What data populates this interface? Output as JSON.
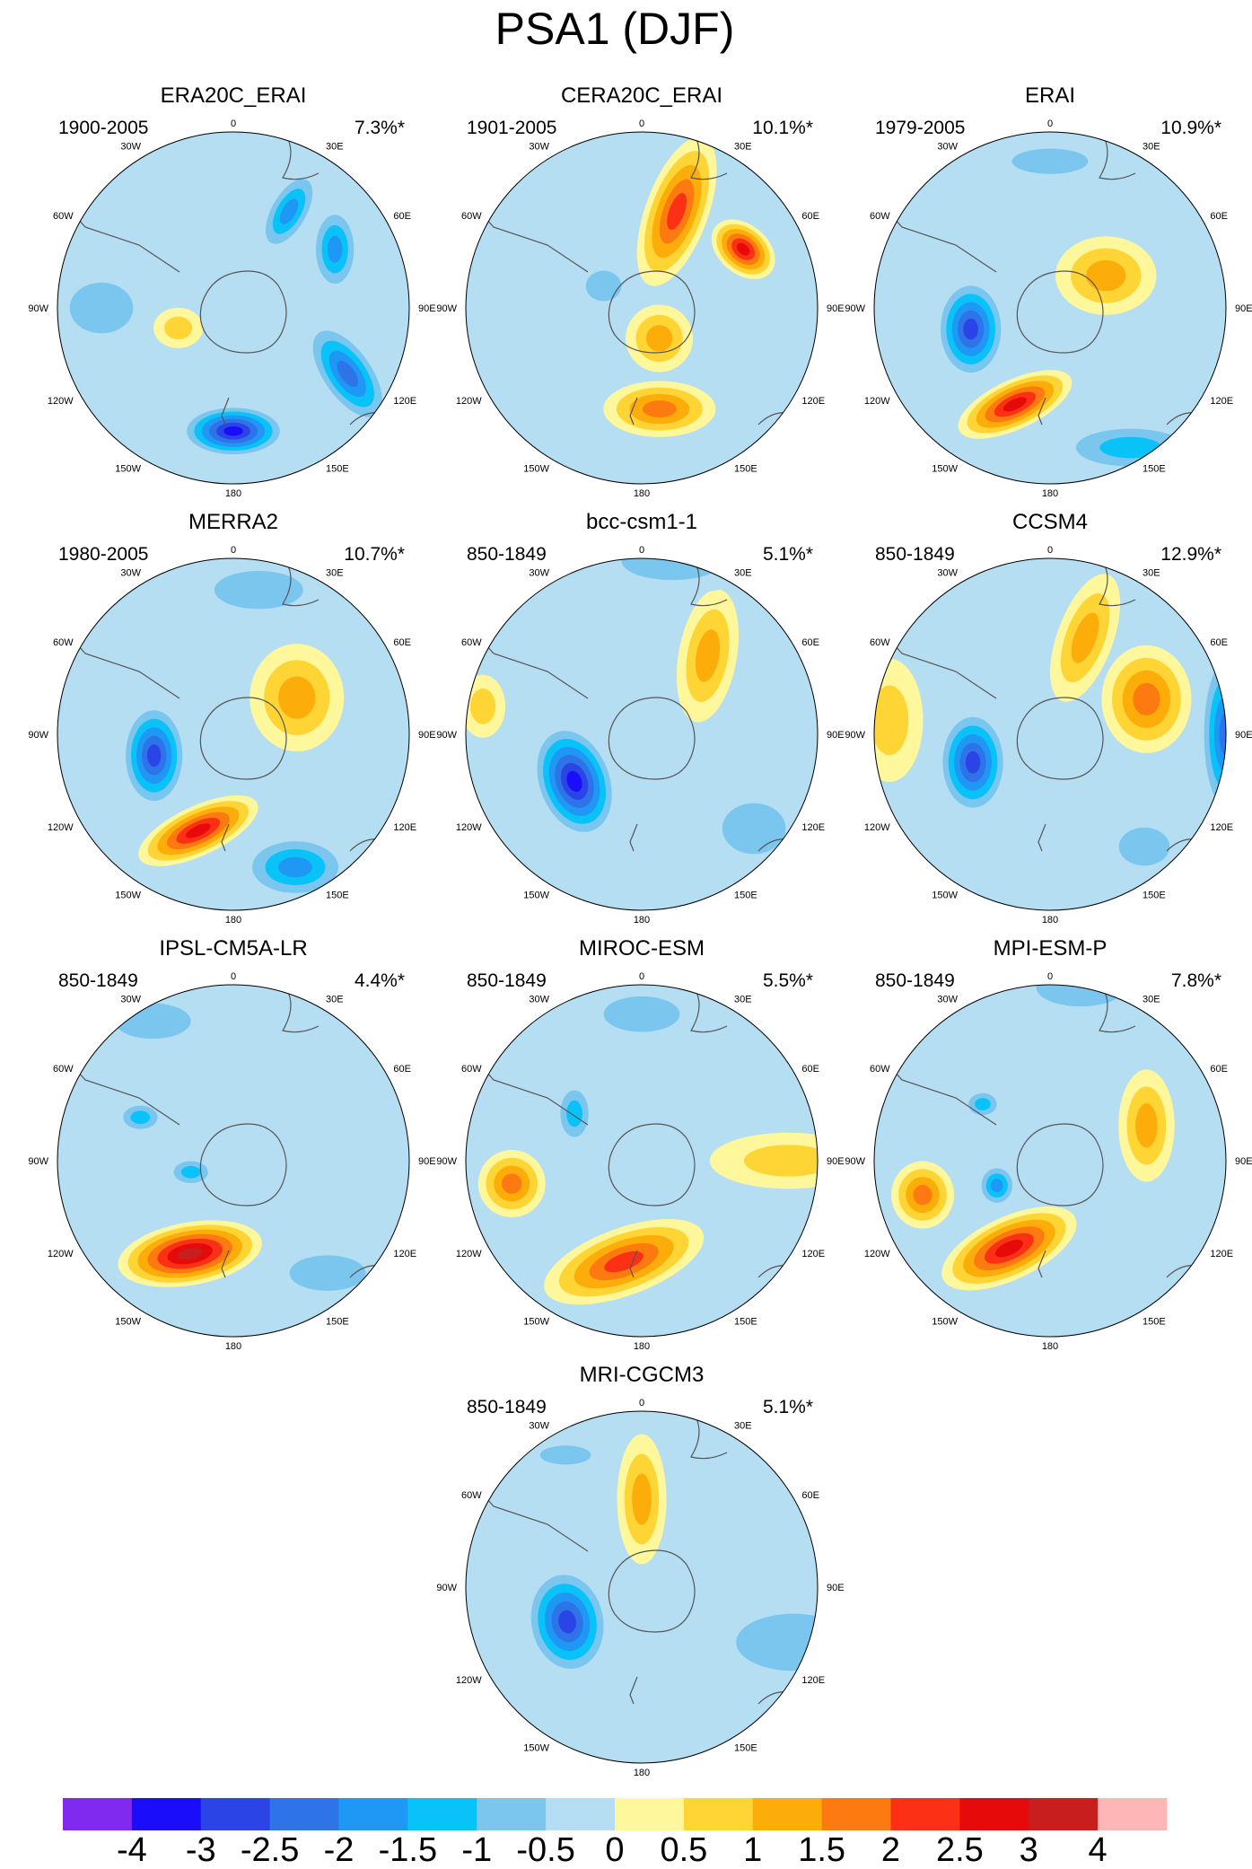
{
  "figure": {
    "title": "PSA1 (DJF)"
  },
  "longitude_labels": [
    "0",
    "30E",
    "60E",
    "90E",
    "120E",
    "150E",
    "180",
    "150W",
    "120W",
    "90W",
    "60W",
    "30W"
  ],
  "panels": [
    {
      "name": "ERA20C_ERAI",
      "period": "1900-2005",
      "variance": "7.3%*",
      "anomalies": [
        {
          "lon": 120,
          "lat": -45,
          "rx": 55,
          "ry": 26,
          "rot": 55,
          "v": -2.0
        },
        {
          "lon": 180,
          "lat": -48,
          "rx": 48,
          "ry": 24,
          "rot": 0,
          "v": -3.0
        },
        {
          "lon": 60,
          "lat": -50,
          "rx": 40,
          "ry": 22,
          "rot": 90,
          "v": -1.5
        },
        {
          "lon": 30,
          "lat": -52,
          "rx": 42,
          "ry": 20,
          "rot": 120,
          "v": -1.5
        },
        {
          "lon": 270,
          "lat": -45,
          "rx": 50,
          "ry": 40,
          "rot": 0,
          "v": -0.8
        },
        {
          "lon": 250,
          "lat": -70,
          "rx": 22,
          "ry": 18,
          "rot": 0,
          "v": 0.8
        }
      ]
    },
    {
      "name": "CERA20C_ERAI",
      "period": "1901-2005",
      "variance": "10.1%*",
      "anomalies": [
        {
          "lon": 20,
          "lat": -55,
          "rx": 70,
          "ry": 28,
          "rot": 110,
          "v": 2.0
        },
        {
          "lon": 60,
          "lat": -50,
          "rx": 32,
          "ry": 22,
          "rot": 40,
          "v": 2.8
        },
        {
          "lon": 170,
          "lat": -55,
          "rx": 50,
          "ry": 25,
          "rot": 0,
          "v": 1.5
        },
        {
          "lon": 300,
          "lat": -75,
          "rx": 28,
          "ry": 24,
          "rot": 0,
          "v": -0.8
        },
        {
          "lon": 150,
          "lat": -78,
          "rx": 30,
          "ry": 30,
          "rot": 0,
          "v": 1.2
        }
      ]
    },
    {
      "name": "ERAI",
      "period": "1979-2005",
      "variance": "10.9%*",
      "anomalies": [
        {
          "lon": 255,
          "lat": -62,
          "rx": 32,
          "ry": 46,
          "rot": 0,
          "v": -2.8
        },
        {
          "lon": 200,
          "lat": -55,
          "rx": 55,
          "ry": 22,
          "rot": -25,
          "v": 2.6
        },
        {
          "lon": 60,
          "lat": -68,
          "rx": 45,
          "ry": 35,
          "rot": 0,
          "v": 1.2
        },
        {
          "lon": 150,
          "lat": -35,
          "rx": 70,
          "ry": 24,
          "rot": 0,
          "v": -1.0
        },
        {
          "lon": 0,
          "lat": -40,
          "rx": 60,
          "ry": 20,
          "rot": 0,
          "v": -0.6
        }
      ]
    },
    {
      "name": "MERRA2",
      "period": "1980-2005",
      "variance": "10.7%*",
      "anomalies": [
        {
          "lon": 255,
          "lat": -62,
          "rx": 30,
          "ry": 48,
          "rot": 0,
          "v": -2.8
        },
        {
          "lon": 200,
          "lat": -55,
          "rx": 58,
          "ry": 22,
          "rot": -25,
          "v": 2.8
        },
        {
          "lon": 60,
          "lat": -65,
          "rx": 42,
          "ry": 48,
          "rot": 0,
          "v": 1.3
        },
        {
          "lon": 155,
          "lat": -40,
          "rx": 50,
          "ry": 30,
          "rot": 0,
          "v": -1.5
        },
        {
          "lon": 10,
          "lat": -40,
          "rx": 70,
          "ry": 30,
          "rot": 0,
          "v": -0.7
        }
      ]
    },
    {
      "name": "bcc-csm1-1",
      "period": "850-1849",
      "variance": "5.1%*",
      "anomalies": [
        {
          "lon": 235,
          "lat": -62,
          "rx": 36,
          "ry": 54,
          "rot": -20,
          "v": -3.0
        },
        {
          "lon": 40,
          "lat": -55,
          "rx": 60,
          "ry": 26,
          "rot": 100,
          "v": 1.0
        },
        {
          "lon": 280,
          "lat": -35,
          "rx": 20,
          "ry": 28,
          "rot": 0,
          "v": 0.6
        },
        {
          "lon": 10,
          "lat": -30,
          "rx": 80,
          "ry": 30,
          "rot": 0,
          "v": -0.6
        },
        {
          "lon": 130,
          "lat": -40,
          "rx": 50,
          "ry": 40,
          "rot": 0,
          "v": -0.6
        }
      ]
    },
    {
      "name": "CCSM4",
      "period": "850-1849",
      "variance": "12.9%*",
      "anomalies": [
        {
          "lon": 250,
          "lat": -62,
          "rx": 32,
          "ry": 48,
          "rot": 0,
          "v": -2.7
        },
        {
          "lon": 70,
          "lat": -55,
          "rx": 40,
          "ry": 48,
          "rot": 0,
          "v": 1.7
        },
        {
          "lon": 20,
          "lat": -55,
          "rx": 60,
          "ry": 25,
          "rot": 110,
          "v": 1.1
        },
        {
          "lon": 90,
          "lat": -30,
          "rx": 24,
          "ry": 80,
          "rot": 0,
          "v": -2.0
        },
        {
          "lon": 275,
          "lat": -35,
          "rx": 30,
          "ry": 55,
          "rot": 0,
          "v": 0.9
        },
        {
          "lon": 140,
          "lat": -40,
          "rx": 40,
          "ry": 30,
          "rot": 0,
          "v": -0.8
        }
      ]
    },
    {
      "name": "IPSL-CM5A-LR",
      "period": "850-1849",
      "variance": "4.4%*",
      "anomalies": [
        {
          "lon": 205,
          "lat": -55,
          "rx": 65,
          "ry": 28,
          "rot": -10,
          "v": 3.1
        },
        {
          "lon": 295,
          "lat": -55,
          "rx": 22,
          "ry": 15,
          "rot": 0,
          "v": -1.3
        },
        {
          "lon": 255,
          "lat": -75,
          "rx": 22,
          "ry": 14,
          "rot": 0,
          "v": -1.0
        },
        {
          "lon": 330,
          "lat": -35,
          "rx": 60,
          "ry": 28,
          "rot": 0,
          "v": -0.5
        },
        {
          "lon": 140,
          "lat": -40,
          "rx": 60,
          "ry": 28,
          "rot": 0,
          "v": -0.6
        }
      ]
    },
    {
      "name": "MIROC-ESM",
      "period": "850-1849",
      "variance": "5.5%*",
      "anomalies": [
        {
          "lon": 190,
          "lat": -55,
          "rx": 75,
          "ry": 30,
          "rot": -20,
          "v": 2.0
        },
        {
          "lon": 260,
          "lat": -45,
          "rx": 30,
          "ry": 30,
          "rot": 0,
          "v": 1.6
        },
        {
          "lon": 305,
          "lat": -62,
          "rx": 18,
          "ry": 30,
          "rot": 0,
          "v": -1.0
        },
        {
          "lon": 90,
          "lat": -40,
          "rx": 70,
          "ry": 25,
          "rot": 0,
          "v": 0.7
        },
        {
          "lon": 0,
          "lat": -40,
          "rx": 60,
          "ry": 28,
          "rot": 0,
          "v": -0.6
        }
      ]
    },
    {
      "name": "MPI-ESM-P",
      "period": "850-1849",
      "variance": "7.8%*",
      "anomalies": [
        {
          "lon": 205,
          "lat": -57,
          "rx": 65,
          "ry": 28,
          "rot": -25,
          "v": 2.8
        },
        {
          "lon": 255,
          "lat": -45,
          "rx": 28,
          "ry": 30,
          "rot": 0,
          "v": 1.6
        },
        {
          "lon": 245,
          "lat": -70,
          "rx": 18,
          "ry": 20,
          "rot": 0,
          "v": -1.5
        },
        {
          "lon": 70,
          "lat": -55,
          "rx": 25,
          "ry": 50,
          "rot": 0,
          "v": 1.0
        },
        {
          "lon": 310,
          "lat": -60,
          "rx": 18,
          "ry": 14,
          "rot": 0,
          "v": -1.0
        },
        {
          "lon": 10,
          "lat": -30,
          "rx": 70,
          "ry": 30,
          "rot": 0,
          "v": -0.6
        }
      ]
    },
    {
      "name": "MRI-CGCM3",
      "period": "850-1849",
      "variance": "5.1%*",
      "anomalies": [
        {
          "lon": 245,
          "lat": -62,
          "rx": 38,
          "ry": 50,
          "rot": -10,
          "v": -2.6
        },
        {
          "lon": 0,
          "lat": -60,
          "rx": 58,
          "ry": 22,
          "rot": 90,
          "v": 1.2
        },
        {
          "lon": 330,
          "lat": -38,
          "rx": 40,
          "ry": 15,
          "rot": 0,
          "v": -0.6
        },
        {
          "lon": 110,
          "lat": -35,
          "rx": 90,
          "ry": 45,
          "rot": 0,
          "v": -0.6
        }
      ]
    }
  ],
  "colorbar": {
    "labels": [
      "-4",
      "-3",
      "-2.5",
      "-2",
      "-1.5",
      "-1",
      "-0.5",
      "0",
      "0.5",
      "1",
      "1.5",
      "2",
      "2.5",
      "3",
      "4"
    ],
    "colors": [
      "#7f2aee",
      "#1a0dfa",
      "#2b44e6",
      "#2e73e8",
      "#1f97f5",
      "#09c2f7",
      "#7ac6ef",
      "#b5def3",
      "#fff79c",
      "#fed534",
      "#fdad09",
      "#fd7a10",
      "#fb3014",
      "#e60a0a",
      "#c81e1e",
      "#ffb6b6"
    ]
  },
  "colors": {
    "base_background": "#b5def3",
    "coastline": "#555555"
  }
}
